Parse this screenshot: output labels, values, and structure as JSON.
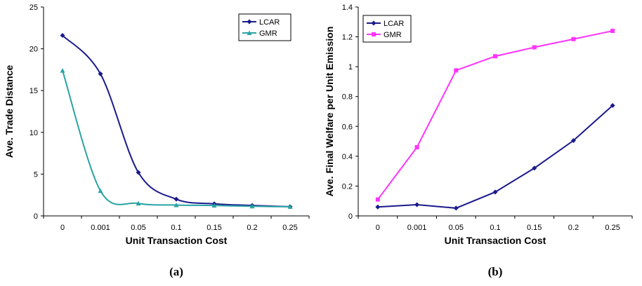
{
  "chart_data": [
    {
      "type": "line",
      "smooth": true,
      "caption": "(a)",
      "xlabel": "Unit Transaction Cost",
      "ylabel": "Ave. Trade Distance",
      "categories": [
        "0",
        "0.001",
        "0.05",
        "0.1",
        "0.15",
        "0.2",
        "0.25"
      ],
      "ylim": [
        0,
        25
      ],
      "yticks": [
        0,
        5,
        10,
        15,
        20,
        25
      ],
      "legend_position": "top-right",
      "series": [
        {
          "name": "LCAR",
          "color": "#1a1a8c",
          "marker": "diamond",
          "values": [
            21.6,
            17.0,
            5.2,
            2.0,
            1.45,
            1.25,
            1.1
          ]
        },
        {
          "name": "GMR",
          "color": "#2aa3a3",
          "marker": "triangle",
          "values": [
            17.4,
            3.0,
            1.5,
            1.3,
            1.25,
            1.15,
            1.1
          ]
        }
      ]
    },
    {
      "type": "line",
      "smooth": false,
      "caption": "(b)",
      "xlabel": "Unit Transaction Cost",
      "ylabel": "Ave. Final Welfare per Unit Emission",
      "categories": [
        "0",
        "0.001",
        "0.05",
        "0.1",
        "0.15",
        "0.2",
        "0.25"
      ],
      "ylim": [
        0,
        1.4
      ],
      "yticks": [
        0,
        0.2,
        0.4,
        0.6,
        0.8,
        1,
        1.2,
        1.4
      ],
      "legend_position": "top-left",
      "series": [
        {
          "name": "LCAR",
          "color": "#1a1a8c",
          "marker": "diamond",
          "values": [
            0.06,
            0.075,
            0.052,
            0.16,
            0.32,
            0.505,
            0.74
          ]
        },
        {
          "name": "GMR",
          "color": "#ff33ff",
          "marker": "square",
          "values": [
            0.11,
            0.46,
            0.975,
            1.07,
            1.13,
            1.185,
            1.24
          ]
        }
      ]
    }
  ]
}
